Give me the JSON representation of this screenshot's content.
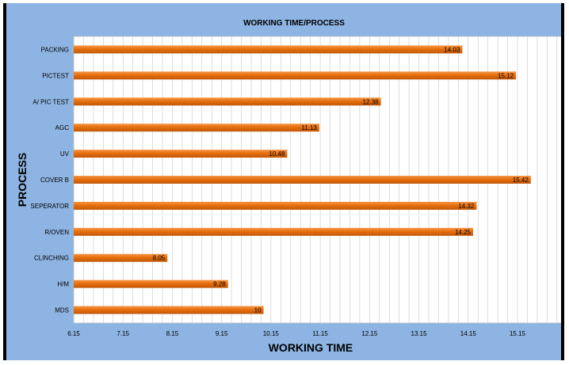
{
  "colors": {
    "background": "#8db4e2",
    "plot": "#ffffff",
    "bar": "#e46c0a",
    "bar_light": "#f79646",
    "grid": "#c8c8c8"
  },
  "chart_data": {
    "type": "bar",
    "orientation": "horizontal",
    "title": "WORKING TIME/PROCESS",
    "xlabel": "WORKING TIME",
    "ylabel": "PROCESS",
    "categories": [
      "PACKING",
      "PICTEST",
      "A/ PIC TEST",
      "AGC",
      "UV",
      "COVER B",
      "SEPERATOR",
      "R/OVEN",
      "CLINCHING",
      "H/M",
      "MDS"
    ],
    "values": [
      14.03,
      15.12,
      12.38,
      11.13,
      10.48,
      15.42,
      14.32,
      14.25,
      8.05,
      9.28,
      10
    ],
    "data_labels": [
      "14.03",
      "15.12",
      "12.38",
      "11.13",
      "10.48",
      "15.42",
      "14.32",
      "14.25",
      "8.05",
      "9.28",
      "10"
    ],
    "x_ticks": [
      "6.15",
      "7.15",
      "8.15",
      "9.15",
      "10.15",
      "11.15",
      "12.15",
      "13.15",
      "14.15",
      "15.15"
    ],
    "xlim": [
      6.15,
      16.05
    ],
    "minor_grid_step": 0.2,
    "grid": true,
    "legend": "none"
  }
}
